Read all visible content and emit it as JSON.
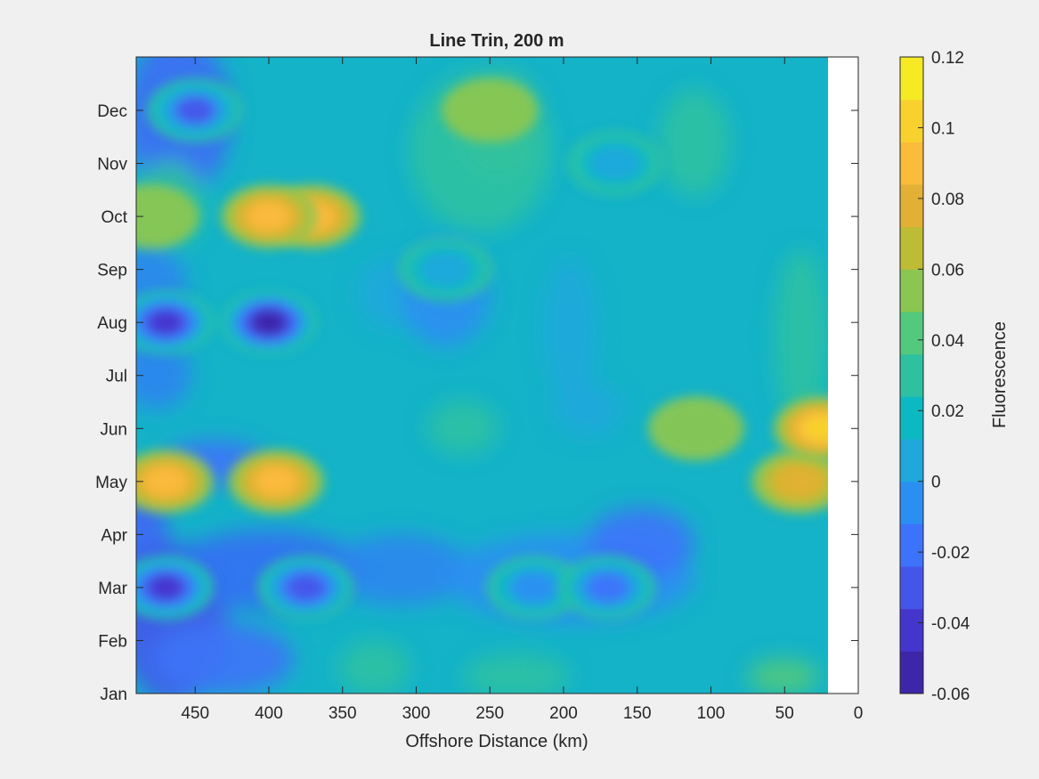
{
  "chart_data": {
    "type": "heatmap",
    "title": "Line Trin, 200 m",
    "xlabel": "Offshore Distance (km)",
    "ylabel": "",
    "xlim": [
      490,
      0
    ],
    "x_reversed": true,
    "ylim_labels": [
      "Jan",
      "Dec"
    ],
    "x_ticks": [
      450,
      400,
      350,
      300,
      250,
      200,
      150,
      100,
      50,
      0
    ],
    "x_tick_labels": [
      "450",
      "400",
      "350",
      "300",
      "250",
      "200",
      "150",
      "100",
      "50",
      "0"
    ],
    "y_tick_labels": [
      "Jan",
      "Feb",
      "Mar",
      "Apr",
      "May",
      "Jun",
      "Jul",
      "Aug",
      "Sep",
      "Oct",
      "Nov",
      "Dec"
    ],
    "data_x_range": [
      490,
      20
    ],
    "colorbar": {
      "label": "Fluorescence",
      "range": [
        -0.06,
        0.12
      ],
      "ticks": [
        -0.06,
        -0.04,
        -0.02,
        0,
        0.02,
        0.04,
        0.06,
        0.08,
        0.1,
        0.12
      ],
      "tick_labels": [
        "-0.06",
        "-0.04",
        "-0.02",
        "0",
        "0.02",
        "0.04",
        "0.06",
        "0.08",
        "0.1",
        "0.12"
      ],
      "colors": [
        "#3e26a8",
        "#4435cc",
        "#4655e9",
        "#3d73fa",
        "#2b8ff2",
        "#1fa8dc",
        "#0cb9c3",
        "#2dc1a2",
        "#52c97c",
        "#8ac651",
        "#bebb34",
        "#e2b034",
        "#fbbb3b",
        "#f8d12e",
        "#f5ea24"
      ]
    },
    "features": [
      {
        "x": 450,
        "y": "Dec",
        "value": -0.025
      },
      {
        "x": 480,
        "y": "Oct",
        "value": 0.055
      },
      {
        "x": 370,
        "y": "Oct",
        "value": 0.085
      },
      {
        "x": 400,
        "y": "Oct",
        "value": 0.09
      },
      {
        "x": 250,
        "y": "Dec",
        "value": 0.055
      },
      {
        "x": 165,
        "y": "Nov",
        "value": 0.01
      },
      {
        "x": 400,
        "y": "Aug",
        "value": -0.055
      },
      {
        "x": 470,
        "y": "Aug",
        "value": -0.045
      },
      {
        "x": 280,
        "y": "Sep",
        "value": 0.01
      },
      {
        "x": 470,
        "y": "May",
        "value": 0.085
      },
      {
        "x": 395,
        "y": "May",
        "value": 0.085
      },
      {
        "x": 40,
        "y": "May",
        "value": 0.08
      },
      {
        "x": 25,
        "y": "Jun",
        "value": 0.105
      },
      {
        "x": 110,
        "y": "Jun",
        "value": 0.055
      },
      {
        "x": 470,
        "y": "Mar",
        "value": -0.045
      },
      {
        "x": 375,
        "y": "Mar",
        "value": -0.03
      },
      {
        "x": 220,
        "y": "Mar",
        "value": -0.01
      },
      {
        "x": 170,
        "y": "Mar",
        "value": -0.02
      }
    ]
  }
}
